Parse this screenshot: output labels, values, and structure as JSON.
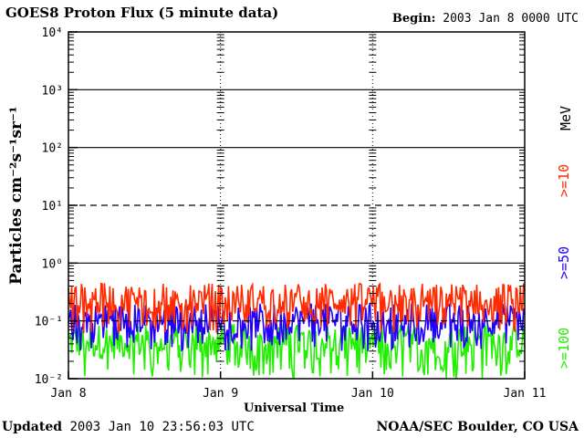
{
  "header": {
    "title": "GOES8 Proton Flux (5 minute data)",
    "begin_label": "Begin:",
    "begin_value": " 2003 Jan 8 0000 UTC"
  },
  "footer": {
    "updated_label": "Updated",
    "updated_value": " 2003 Jan 10 23:56:03 UTC",
    "credit": "NOAA/SEC Boulder, CO USA"
  },
  "chart_data": {
    "type": "line",
    "xlabel": "Universal Time",
    "ylabel": "Particles cm⁻²s⁻¹sr⁻¹",
    "x_ticks": [
      "Jan 8",
      "Jan 9",
      "Jan 10",
      "Jan 11"
    ],
    "xlim_days": [
      0,
      3
    ],
    "y_scale": "log",
    "ylim": [
      0.01,
      10000
    ],
    "y_ticks": [
      "10⁻²",
      "10⁻¹",
      "10⁰",
      "10¹",
      "10²",
      "10³",
      "10⁴"
    ],
    "y_exponents": [
      -2,
      -1,
      0,
      1,
      2,
      3,
      4
    ],
    "series": [
      {
        "name": ">=10",
        "color": "#ff2a00",
        "typical_min": 0.06,
        "typical_max": 0.45
      },
      {
        "name": ">=50",
        "color": "#2200ff",
        "typical_min": 0.03,
        "typical_max": 0.2
      },
      {
        "name": ">=100",
        "color": "#22ee00",
        "typical_min": 0.01,
        "typical_max": 0.09
      }
    ],
    "unit_label": "MeV",
    "legend_placement": "right-vertical"
  }
}
